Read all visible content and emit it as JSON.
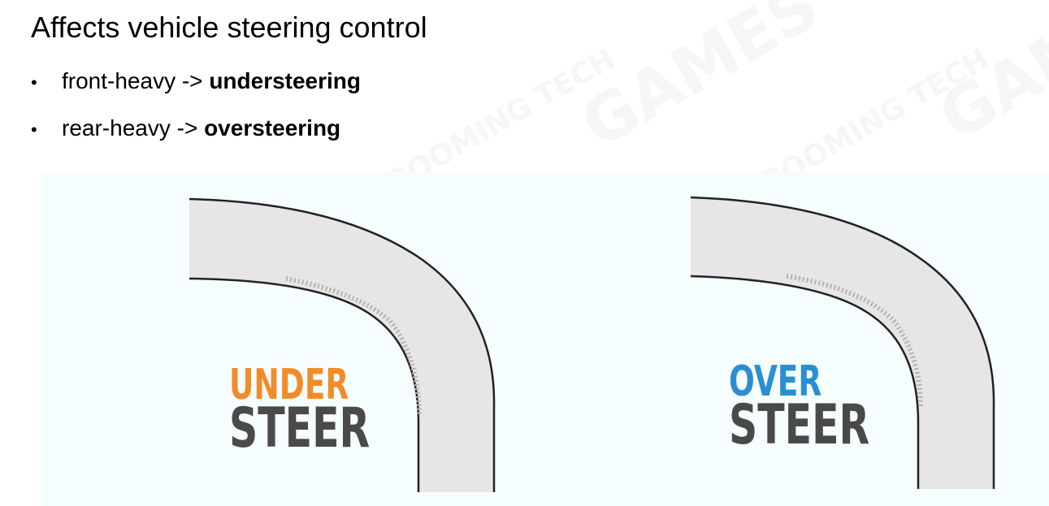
{
  "heading": "Affects vehicle steering control",
  "bullets": [
    {
      "marker": "•",
      "text": "front-heavy -> ",
      "emphasis": "understeering"
    },
    {
      "marker": "•",
      "text": "rear-heavy -> ",
      "emphasis": "oversteering"
    }
  ],
  "figures": {
    "under": {
      "top_word": "UNDER",
      "bottom_word": "STEER",
      "top_color": "#f28c28",
      "bottom_color": "#4a4a4a"
    },
    "over": {
      "top_word": "OVER",
      "bottom_word": "STEER",
      "top_color": "#2a8fd0",
      "bottom_color": "#4a4a4a"
    }
  },
  "colors": {
    "road_fill": "#e6e6e6",
    "road_edge": "#222222",
    "skid_mark": "#b8b2aa",
    "panel_bg": "#f6fdfe"
  },
  "watermark": {
    "brand_a": "GAMES",
    "brand_b": "BOOMING TECH"
  }
}
